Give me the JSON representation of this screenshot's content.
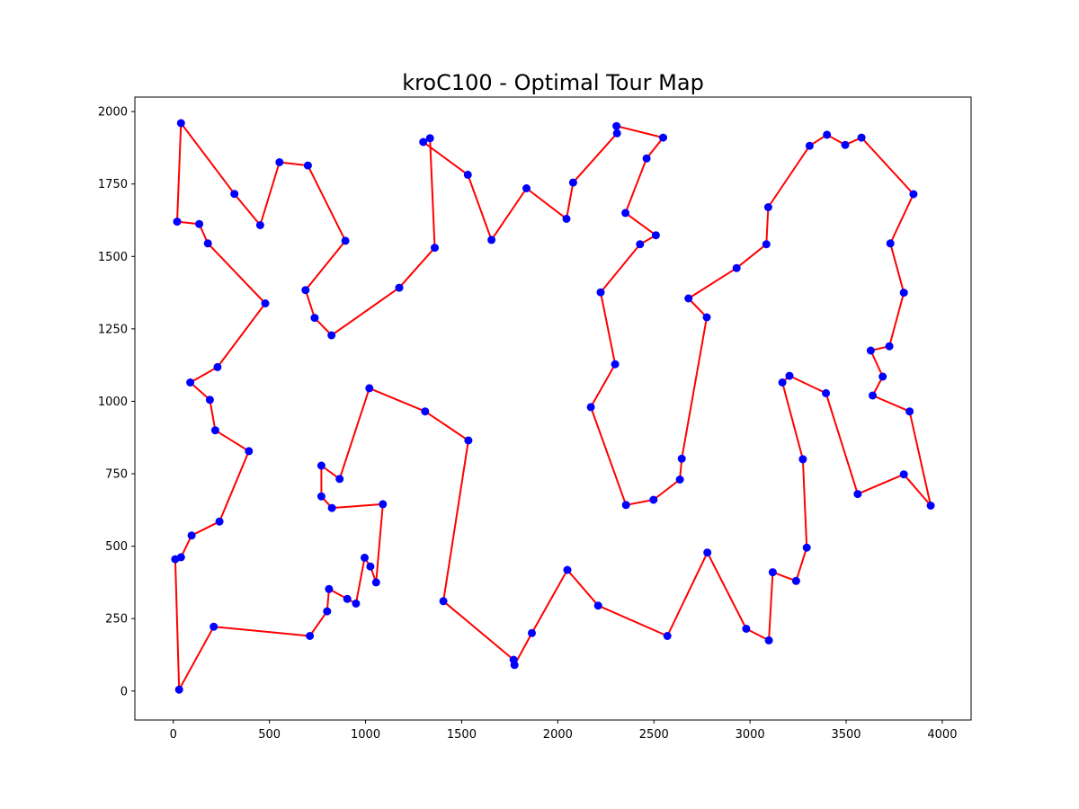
{
  "chart_data": {
    "type": "line",
    "title": "kroC100 - Optimal Tour Map",
    "xlabel": "",
    "ylabel": "",
    "xlim": [
      -200,
      4150
    ],
    "ylim": [
      -100,
      2050
    ],
    "xticks": [
      0,
      500,
      1000,
      1500,
      2000,
      2500,
      3000,
      3500,
      4000
    ],
    "yticks": [
      0,
      250,
      500,
      750,
      1000,
      1250,
      1500,
      1750,
      2000
    ],
    "grid": false,
    "line_color": "#ff0000",
    "marker_color": "#0000ff",
    "tour": [
      [
        30,
        5
      ],
      [
        10,
        455
      ],
      [
        40,
        462
      ],
      [
        95,
        537
      ],
      [
        240,
        585
      ],
      [
        393,
        828
      ],
      [
        218,
        900
      ],
      [
        190,
        1005
      ],
      [
        88,
        1065
      ],
      [
        230,
        1118
      ],
      [
        478,
        1338
      ],
      [
        180,
        1545
      ],
      [
        135,
        1612
      ],
      [
        20,
        1620
      ],
      [
        40,
        1960
      ],
      [
        318,
        1716
      ],
      [
        452,
        1608
      ],
      [
        552,
        1825
      ],
      [
        700,
        1814
      ],
      [
        895,
        1554
      ],
      [
        688,
        1384
      ],
      [
        735,
        1288
      ],
      [
        823,
        1228
      ],
      [
        1175,
        1392
      ],
      [
        1360,
        1530
      ],
      [
        1335,
        1908
      ],
      [
        1300,
        1895
      ],
      [
        1532,
        1782
      ],
      [
        1655,
        1557
      ],
      [
        1837,
        1735
      ],
      [
        2045,
        1630
      ],
      [
        2080,
        1755
      ],
      [
        2308,
        1925
      ],
      [
        2305,
        1950
      ],
      [
        2548,
        1910
      ],
      [
        2462,
        1838
      ],
      [
        2352,
        1650
      ],
      [
        2510,
        1573
      ],
      [
        2428,
        1542
      ],
      [
        2223,
        1376
      ],
      [
        2298,
        1128
      ],
      [
        2172,
        980
      ],
      [
        2355,
        642
      ],
      [
        2498,
        660
      ],
      [
        2635,
        730
      ],
      [
        2645,
        802
      ],
      [
        2775,
        1290
      ],
      [
        2680,
        1355
      ],
      [
        2930,
        1460
      ],
      [
        3085,
        1542
      ],
      [
        3095,
        1670
      ],
      [
        3310,
        1882
      ],
      [
        3400,
        1920
      ],
      [
        3495,
        1885
      ],
      [
        3580,
        1910
      ],
      [
        3850,
        1715
      ],
      [
        3730,
        1545
      ],
      [
        3800,
        1375
      ],
      [
        3725,
        1190
      ],
      [
        3628,
        1175
      ],
      [
        3690,
        1085
      ],
      [
        3638,
        1020
      ],
      [
        3830,
        965
      ],
      [
        3940,
        640
      ],
      [
        3800,
        748
      ],
      [
        3560,
        680
      ],
      [
        3395,
        1028
      ],
      [
        3205,
        1088
      ],
      [
        3168,
        1065
      ],
      [
        3275,
        800
      ],
      [
        3295,
        495
      ],
      [
        3240,
        380
      ],
      [
        3118,
        410
      ],
      [
        3098,
        175
      ],
      [
        2980,
        215
      ],
      [
        2778,
        478
      ],
      [
        2570,
        190
      ],
      [
        2210,
        295
      ],
      [
        2050,
        418
      ],
      [
        1865,
        200
      ],
      [
        1775,
        90
      ],
      [
        1770,
        108
      ],
      [
        1405,
        310
      ],
      [
        1535,
        865
      ],
      [
        1310,
        965
      ],
      [
        1020,
        1045
      ],
      [
        865,
        732
      ],
      [
        770,
        778
      ],
      [
        770,
        672
      ],
      [
        825,
        632
      ],
      [
        1090,
        645
      ],
      [
        1055,
        375
      ],
      [
        1025,
        430
      ],
      [
        995,
        460
      ],
      [
        950,
        302
      ],
      [
        905,
        318
      ],
      [
        810,
        352
      ],
      [
        800,
        275
      ],
      [
        710,
        190
      ],
      [
        210,
        222
      ]
    ]
  }
}
